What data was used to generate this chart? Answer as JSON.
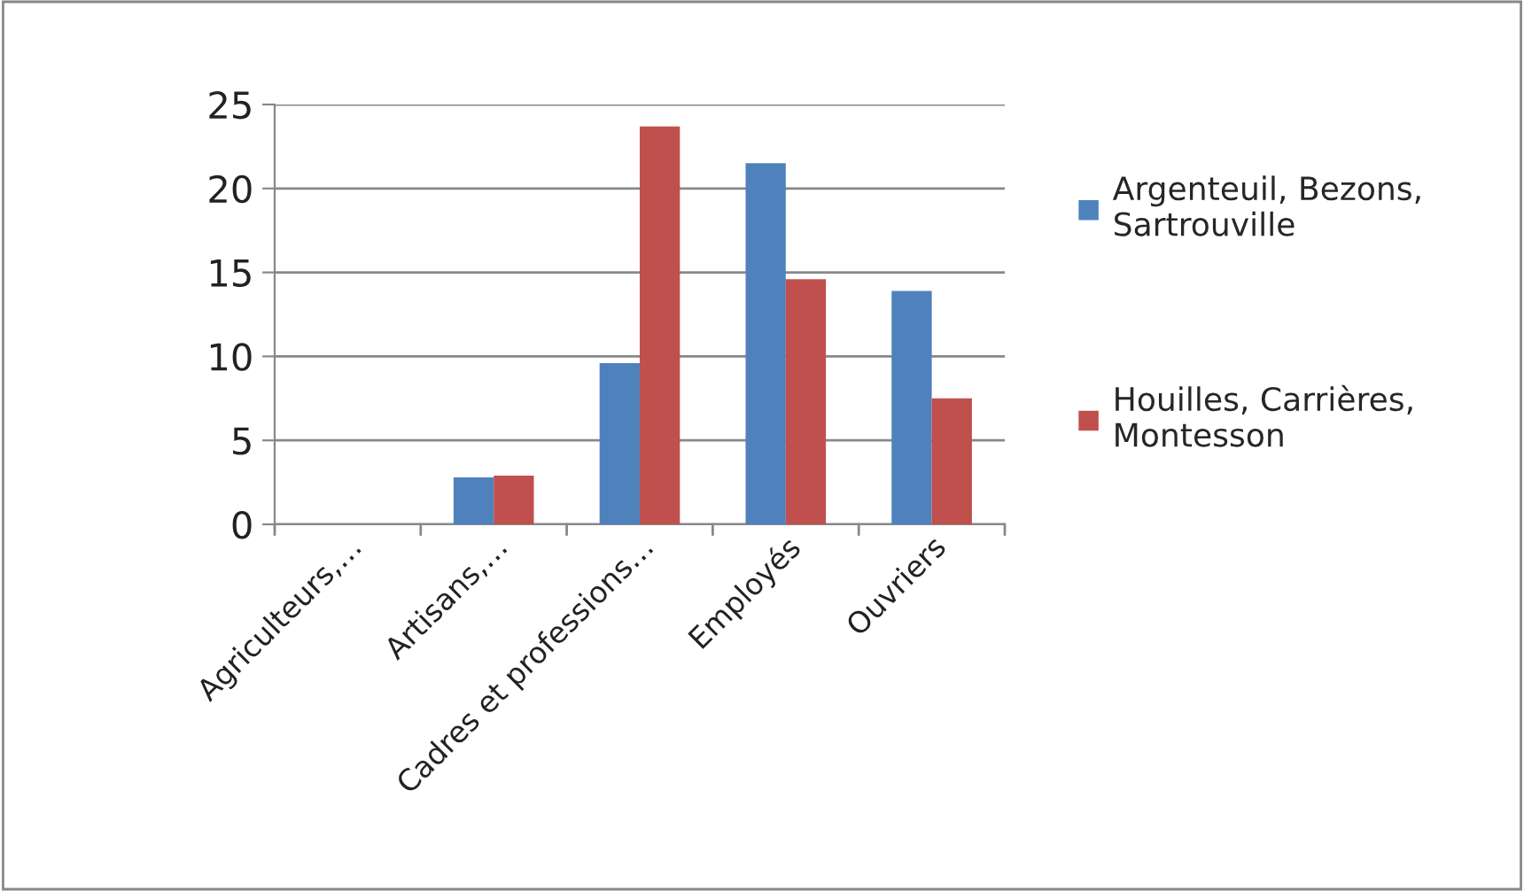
{
  "chart_data": {
    "type": "bar",
    "categories": [
      "Agriculteurs,…",
      "Artisans,…",
      "Cadres et professions…",
      "Employés",
      "Ouvriers"
    ],
    "series": [
      {
        "name": "Argenteuil, Bezons, Sartrouville",
        "color": "#4f81bd",
        "values": [
          0,
          2.8,
          9.6,
          21.5,
          13.9
        ]
      },
      {
        "name": "Houilles, Carrières, Montesson",
        "color": "#c0504d",
        "values": [
          0,
          2.9,
          23.7,
          14.6,
          7.5
        ]
      }
    ],
    "ylim": [
      0,
      25
    ],
    "yticks": [
      0,
      5,
      10,
      15,
      20,
      25
    ],
    "grid": "y",
    "legend": "right"
  }
}
